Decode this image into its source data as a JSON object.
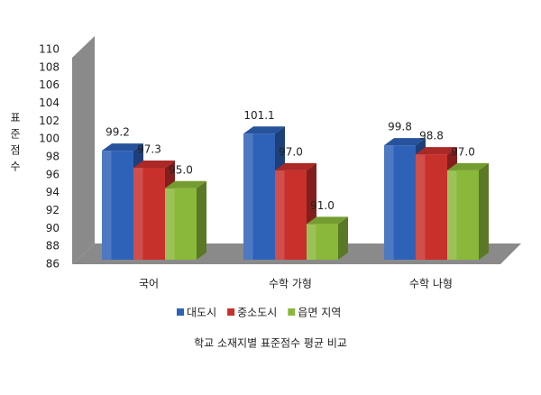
{
  "chart_data": {
    "type": "bar3d",
    "title": "학교 소재지별 표준점수 평균 비교",
    "y_label": "표준점수",
    "categories": [
      "국어",
      "수학 가형",
      "수학 나형"
    ],
    "series": [
      {
        "name": "대도시",
        "color": "#2e62b8",
        "values": [
          99.2,
          101.1,
          99.8
        ],
        "value_labels": [
          "99.2",
          "101.1",
          "99.8"
        ]
      },
      {
        "name": "중소도시",
        "color": "#c8302c",
        "values": [
          97.3,
          97.0,
          98.8
        ],
        "value_labels": [
          "97.3",
          "97.0",
          "98.8"
        ]
      },
      {
        "name": "읍면 지역",
        "color": "#8ab83a",
        "values": [
          95.0,
          91.0,
          97.0
        ],
        "value_labels": [
          "95.0",
          "91.0",
          "97.0"
        ]
      }
    ],
    "ylim": [
      86,
      110
    ],
    "yticks": [
      86,
      88,
      90,
      92,
      94,
      96,
      98,
      100,
      102,
      104,
      106,
      108,
      110
    ],
    "legend": "bottom"
  }
}
